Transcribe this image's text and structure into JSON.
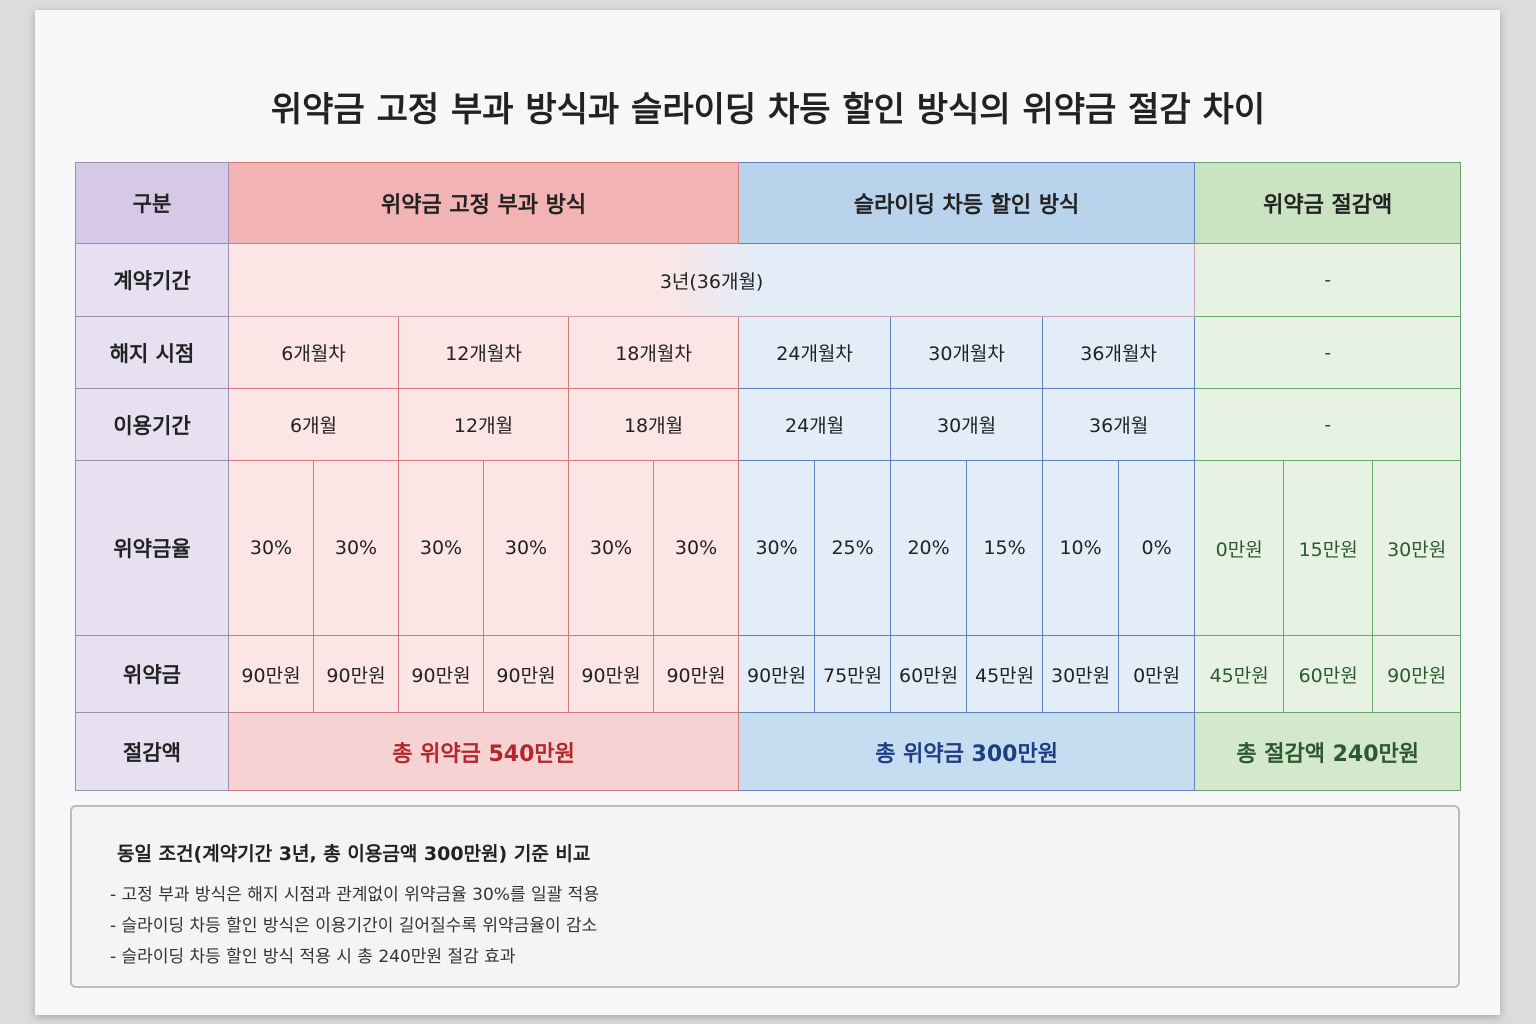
{
  "title": "위약금 고정 부과 방식과 슬라이딩 차등 할인 방식의 위약금 절감 차이",
  "table": {
    "header": [
      "구분",
      "위약금 고정 부과 방식",
      "슬라이딩 차등 할인 방식",
      "위약금 절감액"
    ],
    "contract": {
      "label": "계약기간",
      "value": "3년(36개월)",
      "saving": "-"
    },
    "termination": {
      "label": "해지 시점",
      "cells": [
        "6개월차",
        "12개월차",
        "18개월차",
        "24개월차",
        "30개월차",
        "36개월차"
      ],
      "saving": "-"
    },
    "usage": {
      "label": "이용기간",
      "cells": [
        "6개월",
        "12개월",
        "18개월",
        "24개월",
        "30개월",
        "36개월"
      ],
      "saving": "-"
    },
    "rate": {
      "label": "위약금율",
      "fixed": [
        "30%",
        "30%",
        "30%",
        "30%",
        "30%",
        "30%"
      ],
      "sliding": [
        "30%",
        "25%",
        "20%",
        "15%",
        "10%",
        "0%"
      ],
      "saving": [
        "0만원",
        "15만원",
        "30만원"
      ]
    },
    "penalty": {
      "label": "위약금",
      "fixed": [
        "90만원",
        "90만원",
        "90만원",
        "90만원",
        "90만원",
        "90만원"
      ],
      "sliding": [
        "90만원",
        "75만원",
        "60만원",
        "45만원",
        "30만원",
        "0만원"
      ],
      "saving": [
        "45만원",
        "60만원",
        "90만원"
      ]
    },
    "total": {
      "label": "절감액",
      "fixed": "총 위약금 540만원",
      "sliding": "총 위약금 300만원",
      "saving": "총 절감액 240만원"
    }
  },
  "note": {
    "heading": "동일 조건(계약기간 3년, 총 이용금액 300만원) 기준 비교",
    "items": [
      "- 고정 부과 방식은 해지 시점과 관계없이 위약금율 30%를 일괄 적용",
      "- 슬라이딩 차등 할인 방식은 이용기간이 길어질수록 위약금율이 감소",
      "- 슬라이딩 차등 할인 방식 적용 시 총 240만원 절감 효과"
    ]
  }
}
